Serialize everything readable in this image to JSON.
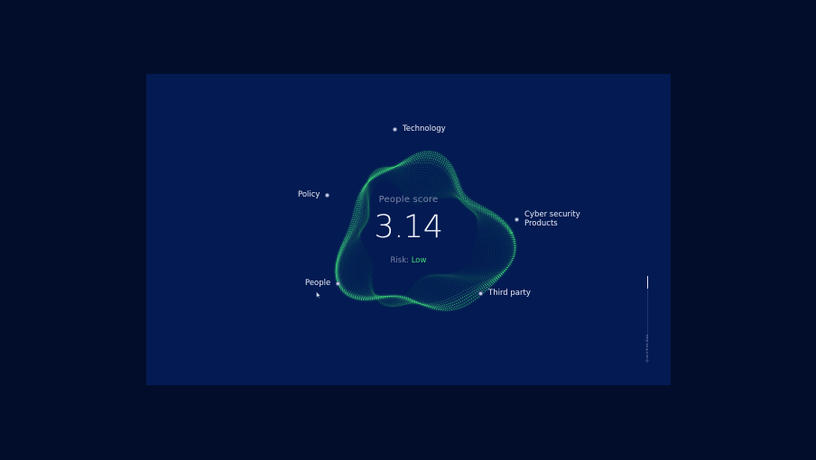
{
  "center": {
    "title": "People score",
    "score": "3.14",
    "risk_prefix": "Risk: ",
    "risk_level": "Low"
  },
  "nodes": [
    {
      "id": "technology",
      "label": "Technology"
    },
    {
      "id": "policy",
      "label": "Policy"
    },
    {
      "id": "cyber",
      "label": "Cyber security\nProducts"
    },
    {
      "id": "people",
      "label": "People"
    },
    {
      "id": "third-party",
      "label": "Third party"
    }
  ],
  "side": {
    "caption": "Quantified Risk"
  },
  "colors": {
    "background": "#020d2b",
    "panel": "#031a52",
    "accent": "#3fd878",
    "text": "#e9ecf6",
    "muted": "#7d86a8"
  }
}
